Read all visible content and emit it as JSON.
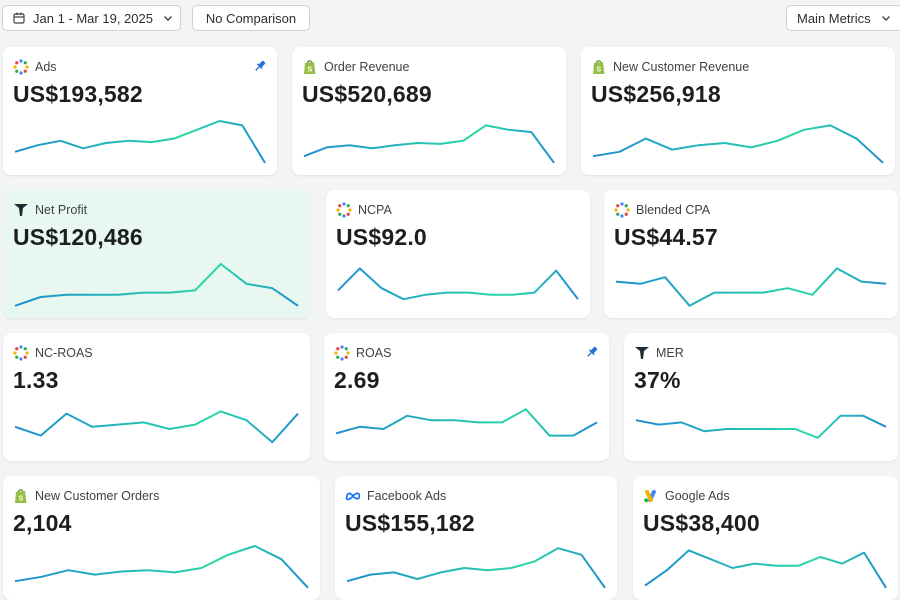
{
  "toolbar": {
    "date_range": "Jan 1 - Mar 19, 2025",
    "comparison": "No Comparison",
    "metrics_view": "Main Metrics"
  },
  "colors": {
    "spark_start": "#1f8fd0",
    "spark_end": "#28d8a6",
    "highlight_bg": "#e9f7f1",
    "pin": "#2a6fd6"
  },
  "cards": [
    {
      "id": "ads",
      "label": "Ads",
      "value": "US$193,582",
      "icon": "multicolor-dots-icon",
      "pinned": true,
      "spark": [
        0.3,
        0.45,
        0.55,
        0.38,
        0.5,
        0.55,
        0.52,
        0.6,
        0.8,
        1.0,
        0.9,
        0.05
      ]
    },
    {
      "id": "order_revenue",
      "label": "Order Revenue",
      "value": "US$520,689",
      "icon": "shopify-icon",
      "pinned": false,
      "spark": [
        0.2,
        0.4,
        0.45,
        0.38,
        0.45,
        0.5,
        0.48,
        0.55,
        0.9,
        0.8,
        0.75,
        0.05
      ]
    },
    {
      "id": "new_customer_revenue",
      "label": "New Customer Revenue",
      "value": "US$256,918",
      "icon": "shopify-icon",
      "pinned": false,
      "spark": [
        0.2,
        0.3,
        0.6,
        0.35,
        0.45,
        0.5,
        0.4,
        0.55,
        0.8,
        0.9,
        0.6,
        0.05
      ]
    },
    {
      "id": "net_profit",
      "label": "Net Profit",
      "value": "US$120,486",
      "icon": "triple-whale-icon",
      "pinned": false,
      "spark": [
        0.05,
        0.25,
        0.3,
        0.3,
        0.3,
        0.35,
        0.35,
        0.4,
        1.0,
        0.55,
        0.45,
        0.05
      ]
    },
    {
      "id": "ncpa",
      "label": "NCPA",
      "value": "US$92.0",
      "icon": "multicolor-dots-icon",
      "pinned": false,
      "spark": [
        0.4,
        0.9,
        0.45,
        0.2,
        0.3,
        0.35,
        0.35,
        0.3,
        0.3,
        0.35,
        0.85,
        0.2
      ]
    },
    {
      "id": "blended_cpa",
      "label": "Blended CPA",
      "value": "US$44.57",
      "icon": "multicolor-dots-icon",
      "pinned": false,
      "spark": [
        0.6,
        0.55,
        0.7,
        0.05,
        0.35,
        0.35,
        0.35,
        0.45,
        0.3,
        0.9,
        0.6,
        0.55
      ]
    },
    {
      "id": "nc_roas",
      "label": "NC-ROAS",
      "value": "1.33",
      "icon": "multicolor-dots-icon",
      "pinned": false,
      "spark": [
        0.55,
        0.35,
        0.85,
        0.55,
        0.6,
        0.65,
        0.5,
        0.6,
        0.9,
        0.7,
        0.2,
        0.85
      ]
    },
    {
      "id": "roas",
      "label": "ROAS",
      "value": "2.69",
      "icon": "multicolor-dots-icon",
      "pinned": true,
      "spark": [
        0.4,
        0.55,
        0.5,
        0.8,
        0.7,
        0.7,
        0.65,
        0.65,
        0.95,
        0.35,
        0.35,
        0.65
      ]
    },
    {
      "id": "mer",
      "label": "MER",
      "value": "37%",
      "icon": "triple-whale-icon",
      "pinned": false,
      "spark": [
        0.7,
        0.6,
        0.65,
        0.45,
        0.5,
        0.5,
        0.5,
        0.5,
        0.3,
        0.8,
        0.8,
        0.55
      ]
    },
    {
      "id": "new_customer_orders",
      "label": "New Customer Orders",
      "value": "2,104",
      "icon": "shopify-icon",
      "pinned": false,
      "spark": [
        0.2,
        0.3,
        0.45,
        0.35,
        0.42,
        0.45,
        0.4,
        0.5,
        0.8,
        1.0,
        0.7,
        0.05
      ]
    },
    {
      "id": "facebook_ads",
      "label": "Facebook Ads",
      "value": "US$155,182",
      "icon": "meta-icon",
      "pinned": false,
      "spark": [
        0.2,
        0.35,
        0.4,
        0.25,
        0.4,
        0.5,
        0.45,
        0.5,
        0.65,
        0.95,
        0.8,
        0.05
      ]
    },
    {
      "id": "google_ads",
      "label": "Google Ads",
      "value": "US$38,400",
      "icon": "google-ads-icon",
      "pinned": false,
      "spark": [
        0.1,
        0.45,
        0.9,
        0.7,
        0.5,
        0.6,
        0.55,
        0.55,
        0.75,
        0.6,
        0.85,
        0.05
      ]
    }
  ]
}
